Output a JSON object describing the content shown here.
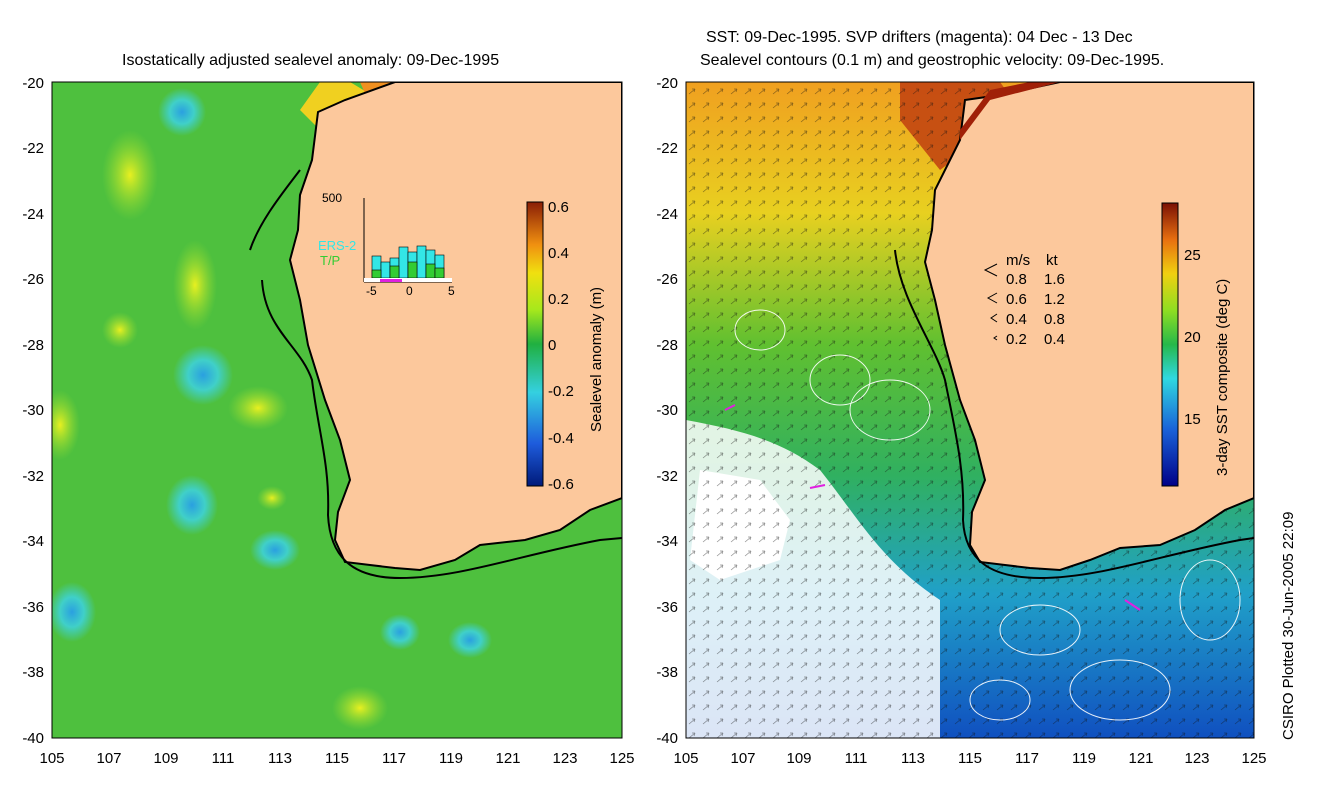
{
  "left_panel": {
    "title": "Isostatically adjusted sealevel anomaly: 09-Dec-1995",
    "colorbar_label": "Sealevel anomaly (m)",
    "colorbar_ticks": [
      "0.6",
      "0.4",
      "0.2",
      "0",
      "-0.2",
      "-0.4",
      "-0.6"
    ],
    "inset": {
      "ymax_label": "500",
      "series": [
        "ERS-2",
        "T/P"
      ],
      "x_ticks": [
        "-5",
        "0",
        "5"
      ],
      "ers2_color": "#33e6e6",
      "tp_color": "#33cc33"
    }
  },
  "right_panel": {
    "title_line1": "SST: 09-Dec-1995. SVP drifters (magenta): 04 Dec - 13 Dec",
    "title_line2": "Sealevel contours (0.1 m) and geostrophic velocity: 09-Dec-1995.",
    "colorbar_label": "3-day SST composite (deg C)",
    "colorbar_ticks": [
      "25",
      "20",
      "15"
    ],
    "velocity_legend": {
      "headers": [
        "m/s",
        "kt"
      ],
      "rows": [
        [
          "0.8",
          "1.6"
        ],
        [
          "0.6",
          "1.2"
        ],
        [
          "0.4",
          "0.8"
        ],
        [
          "0.2",
          "0.4"
        ]
      ]
    }
  },
  "axes": {
    "y_ticks": [
      "-20",
      "-22",
      "-24",
      "-26",
      "-28",
      "-30",
      "-32",
      "-34",
      "-36",
      "-38",
      "-40"
    ],
    "x_ticks": [
      "105",
      "107",
      "109",
      "111",
      "113",
      "115",
      "117",
      "119",
      "121",
      "123",
      "125"
    ]
  },
  "credit": "CSIRO Plotted 30-Jun-2005 22:09",
  "colors": {
    "land": "#fcc89c",
    "drifter": "#e020e0"
  }
}
